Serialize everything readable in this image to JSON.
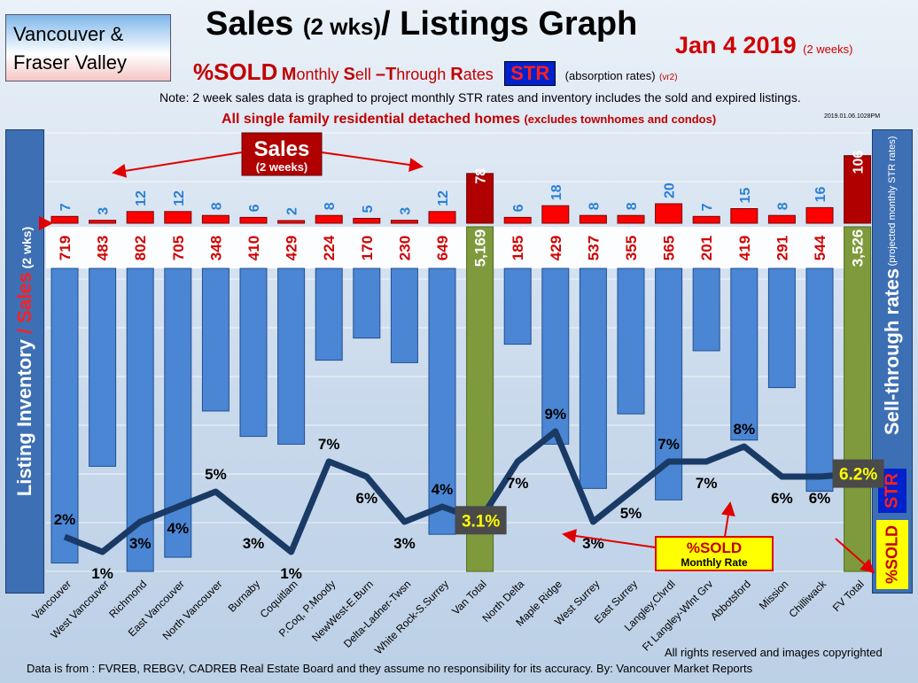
{
  "header": {
    "region_line1": "Vancouver &",
    "region_line2": "Fraser Valley",
    "title_main": "Sales",
    "title_paren": "(2 wks)",
    "title_rest": "/ Listings Graph",
    "date": "Jan  4  2019",
    "date_note": "(2 weeks)",
    "pct_sold": "%SOLD",
    "msr_m": "M",
    "msr_onthly": "onthly ",
    "msr_s": "S",
    "msr_ell": "ell ",
    "msr_dash_t": "–T",
    "msr_hrough": "hrough ",
    "msr_r": "R",
    "msr_ates": "ates",
    "str_badge": "STR",
    "absorption": "(absorption rates)",
    "version": "(vr2)",
    "note": "Note: 2 week sales data is graphed to project monthly STR rates and inventory includes the sold and expired listings.",
    "sfr_main": "All single family residential detached homes",
    "sfr_paren": "(excludes townhomes and condos)",
    "stamp": "2019.01.06.1028PM"
  },
  "left_label": {
    "part1": "Listing Inventory",
    "slash": " / ",
    "part2": "Sales",
    "part3": " (2 wks)"
  },
  "right_label": {
    "main": "Sell-through rates",
    "small": "(projected monthly STR rates)",
    "str": "STR",
    "sold": "%SOLD"
  },
  "callouts": {
    "sales_title": "Sales",
    "sales_sub": "(2 weeks)",
    "sold_rate_title": "%SOLD",
    "sold_rate_sub": "Monthly Rate"
  },
  "footer": {
    "source": "Data is from : FVREB, REBGV, CADREB Real Estate Board and they assume no responsibility for its accuracy. By: Vancouver Market Reports",
    "rights": "All rights reserved and  images copyrighted"
  },
  "chart_data": {
    "type": "bar",
    "title": "Sales (2 wks)/ Listings Graph",
    "categories": [
      "Vancouver",
      "West Vancouver",
      "Richmond",
      "East Vancouver",
      "North Vancouver",
      "Burnaby",
      "Coquitlam",
      "P.Coq, P.Moody",
      "NewWest-E.Burn",
      "Delta-Ladner-Twsn",
      "White Rock-S.Surrey",
      "Van Total",
      "North Delta",
      "Maple Ridge",
      "West Surrey",
      "East Surrey",
      "Langley,Clvrdl",
      "Ft Langley-Wlnt Grv",
      "Abbotsford",
      "Mission",
      "Chilliwack",
      "FV Total"
    ],
    "series": [
      {
        "name": "Listing Inventory",
        "values": [
          719,
          483,
          802,
          705,
          348,
          410,
          429,
          224,
          170,
          230,
          649,
          5169,
          185,
          429,
          537,
          355,
          565,
          201,
          419,
          291,
          544,
          3526
        ],
        "labels": [
          "719",
          "483",
          "802",
          "705",
          "348",
          "410",
          "429",
          "224",
          "170",
          "230",
          "649",
          "5,169",
          "185",
          "429",
          "537",
          "355",
          "565",
          "201",
          "419",
          "291",
          "544",
          "3,526"
        ]
      },
      {
        "name": "Sales (2 wks)",
        "values": [
          7,
          3,
          12,
          12,
          8,
          6,
          2,
          8,
          5,
          3,
          12,
          78,
          6,
          18,
          8,
          8,
          20,
          7,
          15,
          8,
          16,
          106
        ]
      },
      {
        "name": "%SOLD Monthly Rate",
        "values": [
          2,
          1,
          3,
          4,
          5,
          3,
          1,
          7,
          6,
          3,
          4,
          3.1,
          7,
          9,
          3,
          5,
          7,
          7,
          8,
          6,
          6,
          6.2
        ],
        "labels": [
          "2%",
          "1%",
          "3%",
          "4%",
          "5%",
          "3%",
          "1%",
          "7%",
          "6%",
          "3%",
          "4%",
          "3.1%",
          "7%",
          "9%",
          "3%",
          "5%",
          "7%",
          "7%",
          "8%",
          "6%",
          "6%",
          "6.2%"
        ]
      }
    ],
    "totals": [
      "Van Total",
      "FV Total"
    ],
    "colors": {
      "inventory": "#4a86d4",
      "total": "#7f9a3c",
      "sales": "#ff0000",
      "total_sales": "#b00000",
      "line": "#1a3a66",
      "sales_label": "#2b7fd4"
    }
  }
}
